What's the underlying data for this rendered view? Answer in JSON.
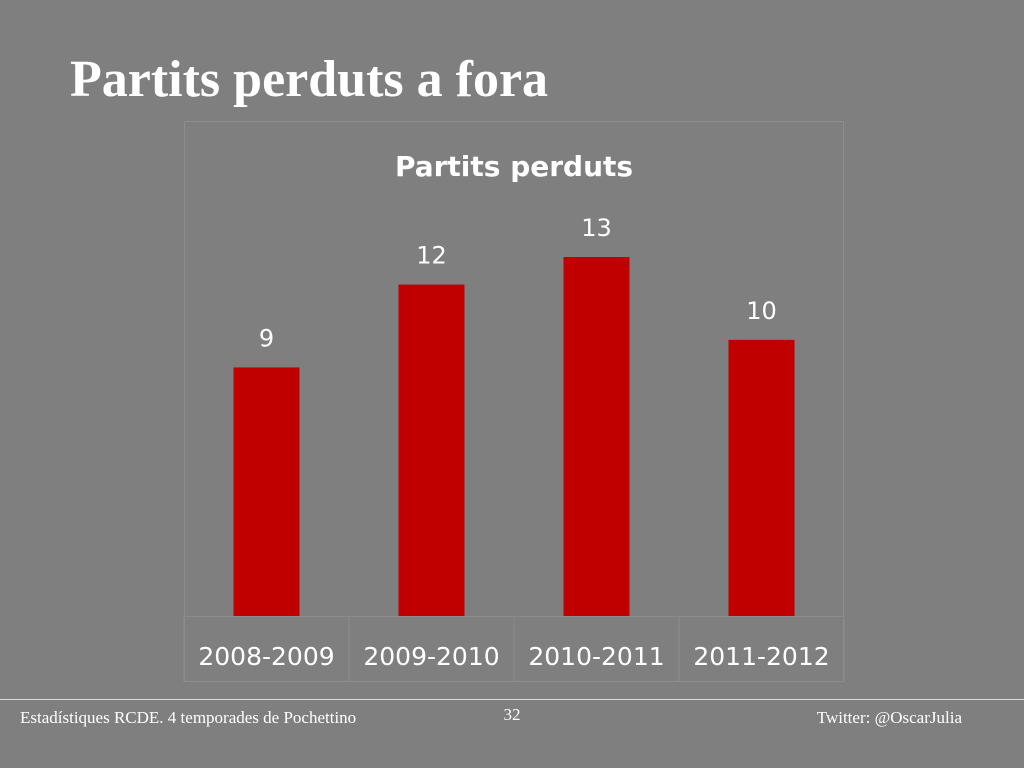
{
  "slide_title": "Partits perduts a fora",
  "footer": {
    "left": "Estadístiques RCDE. 4 temporades de Pochettino",
    "page": 32,
    "right": "Twitter: @OscarJulia"
  },
  "chart_data": {
    "type": "bar",
    "title": "Partits perduts",
    "categories": [
      "2008-2009",
      "2009-2010",
      "2010-2011",
      "2011-2012"
    ],
    "values": [
      9,
      12,
      13,
      10
    ],
    "color": "#c00000"
  }
}
